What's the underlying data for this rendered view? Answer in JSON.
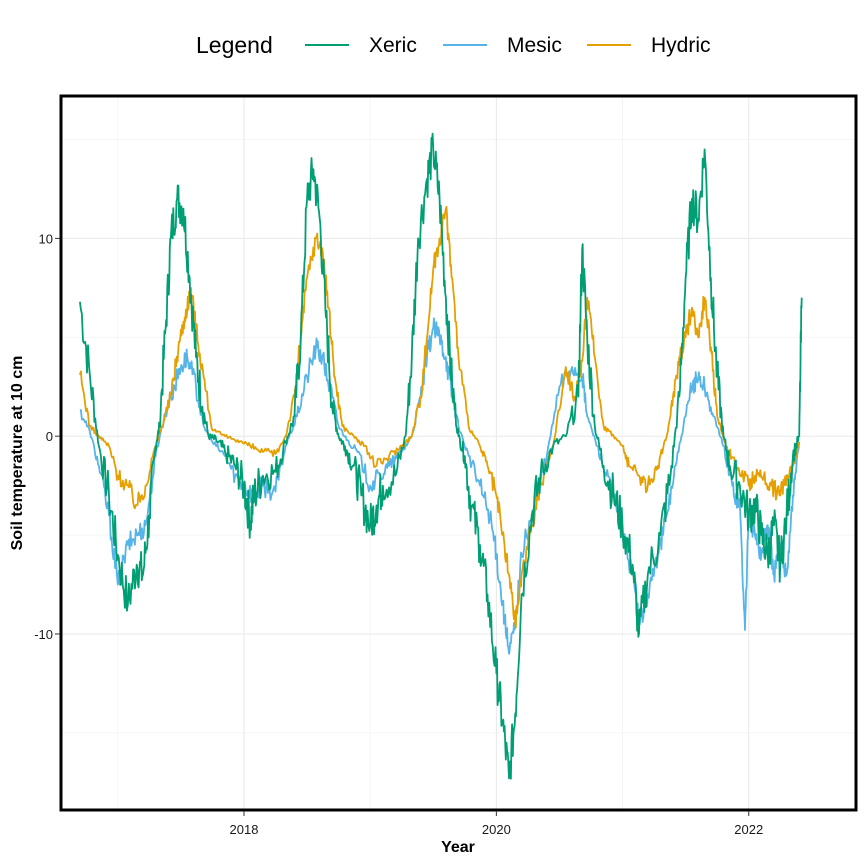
{
  "chart_data": {
    "type": "line",
    "title": "",
    "xlabel": "Year",
    "ylabel": "Soil temperature at 10 cm",
    "xlim": [
      2016.55,
      2022.85
    ],
    "ylim": [
      -18.9,
      17.2
    ],
    "x_ticks": [
      2018,
      2020,
      2022
    ],
    "y_ticks": [
      -10,
      0,
      10
    ],
    "x_tick_labels": [
      "2018",
      "2020",
      "2022"
    ],
    "y_tick_labels": [
      "-10",
      "0",
      "10"
    ],
    "grid": true,
    "legend": {
      "title": "Legend",
      "position": "top"
    },
    "series": [
      {
        "name": "Xeric",
        "color": "#009E73",
        "x": [
          2016.7,
          2016.78,
          2016.85,
          2016.93,
          2017.0,
          2017.08,
          2017.15,
          2017.2,
          2017.25,
          2017.3,
          2017.33,
          2017.38,
          2017.42,
          2017.47,
          2017.52,
          2017.57,
          2017.62,
          2017.67,
          2017.72,
          2017.78,
          2017.85,
          2017.93,
          2018.0,
          2018.05,
          2018.08,
          2018.15,
          2018.25,
          2018.33,
          2018.4,
          2018.45,
          2018.5,
          2018.55,
          2018.6,
          2018.65,
          2018.7,
          2018.75,
          2018.8,
          2018.87,
          2018.93,
          2019.0,
          2019.05,
          2019.1,
          2019.2,
          2019.28,
          2019.33,
          2019.38,
          2019.45,
          2019.5,
          2019.55,
          2019.6,
          2019.65,
          2019.7,
          2019.75,
          2019.8,
          2019.87,
          2019.93,
          2020.0,
          2020.05,
          2020.1,
          2020.15,
          2020.2,
          2020.28,
          2020.35,
          2020.45,
          2020.55,
          2020.65,
          2020.68,
          2020.72,
          2020.78,
          2020.85,
          2020.93,
          2021.0,
          2021.08,
          2021.13,
          2021.2,
          2021.3,
          2021.38,
          2021.45,
          2021.5,
          2021.55,
          2021.6,
          2021.65,
          2021.7,
          2021.75,
          2021.8,
          2021.85,
          2021.93,
          2022.0,
          2022.05,
          2022.1,
          2022.15,
          2022.2,
          2022.25,
          2022.3,
          2022.35,
          2022.4,
          2022.42
        ],
        "y": [
          6.8,
          3.0,
          -0.5,
          -3.0,
          -6.0,
          -8.5,
          -6.5,
          -7.0,
          -4.0,
          -0.5,
          0.5,
          5.5,
          10.0,
          12.0,
          11.5,
          8.0,
          4.0,
          1.5,
          0.0,
          -0.2,
          -0.8,
          -1.5,
          -2.5,
          -4.3,
          -3.0,
          -2.0,
          -1.8,
          -0.3,
          1.0,
          5.0,
          12.0,
          13.5,
          11.0,
          6.0,
          1.5,
          0.0,
          -0.5,
          -1.5,
          -3.0,
          -4.5,
          -3.5,
          -2.5,
          -2.0,
          0.0,
          4.0,
          10.0,
          13.0,
          14.5,
          12.0,
          7.0,
          2.5,
          0.0,
          -1.0,
          -3.5,
          -5.5,
          -8.0,
          -12.0,
          -14.5,
          -17.3,
          -14.0,
          -8.0,
          -4.0,
          -2.0,
          -0.5,
          0.0,
          2.0,
          9.5,
          5.0,
          0.5,
          -1.5,
          -3.0,
          -4.5,
          -6.5,
          -10.0,
          -7.0,
          -5.0,
          -2.0,
          2.0,
          8.0,
          12.0,
          11.0,
          14.5,
          8.0,
          3.0,
          0.0,
          -1.5,
          -2.5,
          -4.0,
          -3.5,
          -5.0,
          -6.0,
          -4.5,
          -6.5,
          -4.0,
          -1.0,
          0.0,
          7.0
        ]
      },
      {
        "name": "Mesic",
        "color": "#56B4E9",
        "x": [
          2016.7,
          2016.78,
          2016.85,
          2016.93,
          2017.0,
          2017.08,
          2017.15,
          2017.22,
          2017.3,
          2017.35,
          2017.42,
          2017.5,
          2017.55,
          2017.62,
          2017.68,
          2017.75,
          2017.85,
          2017.93,
          2018.0,
          2018.08,
          2018.15,
          2018.25,
          2018.33,
          2018.42,
          2018.5,
          2018.57,
          2018.62,
          2018.68,
          2018.75,
          2018.82,
          2018.9,
          2019.0,
          2019.08,
          2019.15,
          2019.25,
          2019.33,
          2019.4,
          2019.45,
          2019.5,
          2019.55,
          2019.6,
          2019.65,
          2019.7,
          2019.78,
          2019.87,
          2019.95,
          2020.0,
          2020.05,
          2020.1,
          2020.15,
          2020.2,
          2020.3,
          2020.4,
          2020.5,
          2020.6,
          2020.68,
          2020.72,
          2020.8,
          2020.87,
          2020.95,
          2021.0,
          2021.08,
          2021.13,
          2021.2,
          2021.28,
          2021.35,
          2021.42,
          2021.5,
          2021.55,
          2021.6,
          2021.65,
          2021.72,
          2021.8,
          2021.87,
          2021.93,
          2021.97,
          2022.0,
          2022.05,
          2022.1,
          2022.15,
          2022.2,
          2022.25,
          2022.3,
          2022.35,
          2022.4
        ],
        "y": [
          1.3,
          0.2,
          -1.5,
          -4.0,
          -7.5,
          -5.5,
          -5.0,
          -4.5,
          -1.0,
          0.5,
          2.0,
          3.5,
          4.0,
          2.5,
          0.5,
          -0.3,
          -1.0,
          -2.0,
          -2.5,
          -3.0,
          -2.5,
          -2.8,
          -0.5,
          1.0,
          3.0,
          4.5,
          4.0,
          2.5,
          0.5,
          -0.2,
          -0.8,
          -2.5,
          -2.0,
          -1.5,
          -0.8,
          0.0,
          2.0,
          4.0,
          5.5,
          5.0,
          4.0,
          2.0,
          0.5,
          -1.0,
          -2.5,
          -4.0,
          -6.0,
          -8.5,
          -11.0,
          -9.5,
          -6.0,
          -3.5,
          -1.0,
          2.5,
          3.5,
          3.0,
          1.0,
          -0.5,
          -2.0,
          -3.5,
          -5.0,
          -7.0,
          -9.5,
          -8.0,
          -6.0,
          -4.0,
          -1.5,
          1.0,
          2.5,
          3.0,
          2.5,
          1.0,
          -0.5,
          -2.5,
          -3.5,
          -9.8,
          -4.0,
          -5.0,
          -6.0,
          -4.5,
          -7.0,
          -5.5,
          -7.0,
          -3.0,
          -0.3
        ]
      },
      {
        "name": "Hydric",
        "color": "#E69F00",
        "x": [
          2016.7,
          2016.78,
          2016.85,
          2016.93,
          2017.0,
          2017.08,
          2017.15,
          2017.22,
          2017.3,
          2017.35,
          2017.42,
          2017.48,
          2017.53,
          2017.58,
          2017.62,
          2017.68,
          2017.75,
          2017.85,
          2017.95,
          2018.05,
          2018.15,
          2018.25,
          2018.33,
          2018.4,
          2018.45,
          2018.5,
          2018.57,
          2018.62,
          2018.67,
          2018.72,
          2018.78,
          2018.87,
          2018.95,
          2019.05,
          2019.15,
          2019.25,
          2019.33,
          2019.4,
          2019.45,
          2019.5,
          2019.55,
          2019.6,
          2019.65,
          2019.7,
          2019.78,
          2019.87,
          2019.93,
          2020.0,
          2020.05,
          2020.1,
          2020.15,
          2020.2,
          2020.28,
          2020.35,
          2020.45,
          2020.55,
          2020.62,
          2020.67,
          2020.72,
          2020.78,
          2020.85,
          2020.93,
          2021.0,
          2021.05,
          2021.13,
          2021.2,
          2021.28,
          2021.35,
          2021.4,
          2021.45,
          2021.5,
          2021.55,
          2021.6,
          2021.65,
          2021.7,
          2021.75,
          2021.82,
          2021.9,
          2022.0,
          2022.05,
          2022.12,
          2022.18,
          2022.25,
          2022.3,
          2022.35,
          2022.4
        ],
        "y": [
          3.1,
          0.5,
          0.0,
          -0.5,
          -2.0,
          -2.5,
          -3.5,
          -2.5,
          -0.5,
          0.5,
          2.0,
          4.5,
          6.0,
          7.5,
          5.5,
          3.0,
          0.3,
          0.0,
          -0.2,
          -0.5,
          -0.8,
          -0.9,
          0.0,
          2.0,
          5.0,
          8.0,
          10.0,
          9.5,
          6.5,
          3.0,
          0.5,
          0.0,
          -0.5,
          -1.5,
          -1.0,
          -0.5,
          0.0,
          2.0,
          5.0,
          8.5,
          10.0,
          11.5,
          8.0,
          4.0,
          0.5,
          -0.5,
          -1.5,
          -3.0,
          -5.0,
          -7.0,
          -9.5,
          -7.0,
          -4.5,
          -2.5,
          -0.5,
          3.5,
          2.0,
          3.0,
          7.0,
          4.0,
          0.5,
          0.0,
          -0.5,
          -1.5,
          -2.0,
          -2.5,
          -1.5,
          0.0,
          2.0,
          4.0,
          5.0,
          6.5,
          5.0,
          7.0,
          4.5,
          1.0,
          -0.5,
          -1.5,
          -2.5,
          -2.0,
          -2.0,
          -2.5,
          -3.0,
          -2.0,
          -1.5,
          -0.3
        ]
      }
    ]
  }
}
